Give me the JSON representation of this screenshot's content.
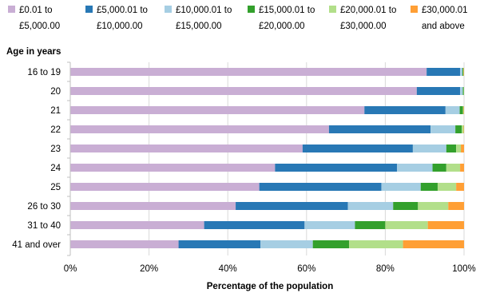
{
  "chart_data": {
    "type": "bar",
    "orientation": "horizontal",
    "stacked": true,
    "percent_stacked": true,
    "ylabel": "Age in years",
    "xlabel": "Percentage of the population",
    "xlim": [
      0,
      100
    ],
    "x_ticks": [
      "0%",
      "20%",
      "40%",
      "60%",
      "80%",
      "100%"
    ],
    "grid": "vertical",
    "legend_position": "top",
    "categories": [
      "16 to 19",
      "20",
      "21",
      "22",
      "23",
      "24",
      "25",
      "26 to 30",
      "31 to 40",
      "41 and over"
    ],
    "series": [
      {
        "name_lines": [
          "£0.01 to",
          "£5,000.00"
        ],
        "color": "#c9aed4",
        "values": [
          90.5,
          88.0,
          74.7,
          65.7,
          59.0,
          52.0,
          48.0,
          42.0,
          34.0,
          27.5
        ]
      },
      {
        "name_lines": [
          "£5,000.01 to",
          "£10,000.00"
        ],
        "color": "#2878b5",
        "values": [
          8.5,
          11.0,
          20.6,
          25.8,
          28.0,
          31.0,
          31.0,
          28.5,
          25.5,
          20.8
        ]
      },
      {
        "name_lines": [
          "£10,000.01 to",
          "£15,000.00"
        ],
        "color": "#a6cee3",
        "values": [
          0.6,
          0.7,
          3.6,
          6.3,
          8.5,
          9.0,
          10.0,
          11.5,
          12.8,
          13.3
        ]
      },
      {
        "name_lines": [
          "£15,000.01 to",
          "£20,000.00"
        ],
        "color": "#33a02c",
        "values": [
          0.2,
          0.2,
          0.8,
          1.6,
          2.5,
          3.5,
          4.3,
          6.3,
          7.7,
          9.2
        ]
      },
      {
        "name_lines": [
          "£20,000.01 to",
          "£30,000.00"
        ],
        "color": "#b2df8a",
        "values": [
          0.1,
          0.1,
          0.2,
          0.5,
          1.2,
          3.5,
          4.7,
          7.7,
          10.8,
          13.7
        ]
      },
      {
        "name_lines": [
          "£30,000.01",
          "and above"
        ],
        "color": "#ff9f35",
        "values": [
          0.1,
          0.0,
          0.1,
          0.1,
          0.8,
          1.0,
          2.0,
          4.0,
          9.2,
          15.5
        ]
      }
    ]
  }
}
